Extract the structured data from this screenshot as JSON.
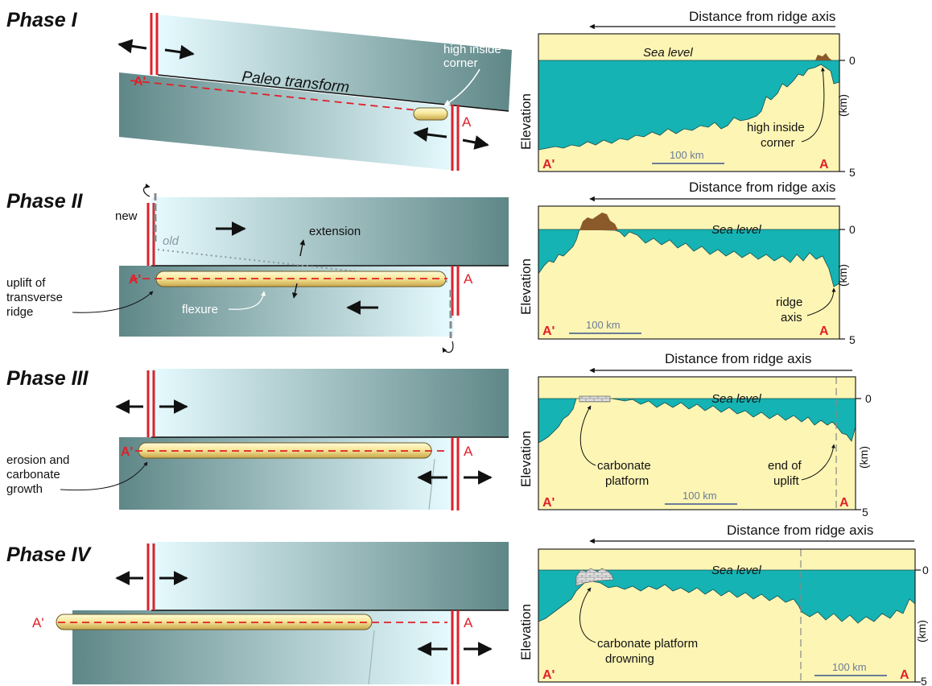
{
  "phases": [
    {
      "title": "Phase I",
      "map_labels": {
        "transform": "Paleo transform",
        "corner_line1": "high inside",
        "corner_line2": "corner"
      },
      "profile": {
        "title": "Distance from ridge axis",
        "sea_level": "Sea level",
        "elevation": "Elevation",
        "unit": "(km)",
        "tick_top": "0",
        "tick_bottom": "5",
        "scale": "100 km",
        "left_marker": "A'",
        "right_marker": "A",
        "annotation_line1": "high inside",
        "annotation_line2": "corner"
      }
    },
    {
      "title": "Phase II",
      "map_labels": {
        "new": "new",
        "old": "old",
        "extension": "extension",
        "uplift_line1": "uplift of",
        "uplift_line2": "transverse",
        "uplift_line3": "ridge",
        "flexure": "flexure"
      },
      "profile": {
        "title": "Distance from ridge axis",
        "sea_level": "Sea level",
        "elevation": "Elevation",
        "unit": "(km)",
        "tick_top": "0",
        "tick_bottom": "5",
        "scale": "100 km",
        "left_marker": "A'",
        "right_marker": "A",
        "annotation_line1": "ridge",
        "annotation_line2": "axis"
      }
    },
    {
      "title": "Phase III",
      "map_labels": {
        "erosion_line1": "erosion and",
        "erosion_line2": "carbonate",
        "erosion_line3": "growth"
      },
      "profile": {
        "title": "Distance from ridge axis",
        "sea_level": "Sea level",
        "elevation": "Elevation",
        "unit": "(km)",
        "tick_top": "0",
        "tick_bottom": "5",
        "scale": "100 km",
        "left_marker": "A'",
        "right_marker": "A",
        "annotation_line1": "carbonate",
        "annotation_line2": "platform",
        "annotation2_line1": "end of",
        "annotation2_line2": "uplift"
      }
    },
    {
      "title": "Phase IV",
      "map_labels": {},
      "profile": {
        "title": "Distance from ridge axis",
        "sea_level": "Sea level",
        "elevation": "Elevation",
        "unit": "(km)",
        "tick_top": "0",
        "tick_bottom": "5",
        "scale": "100 km",
        "left_marker": "A'",
        "right_marker": "A",
        "annotation_line1": "carbonate platform",
        "annotation_line2": "drowning"
      }
    }
  ],
  "markers": {
    "a_prime": "A'",
    "a": "A"
  },
  "colors": {
    "ocean": "#15b3b3",
    "seafloor": "#fdf5b4",
    "ridge": "#e0202a",
    "emergent": "#8b5a2b",
    "plate_light": "#e6fbff",
    "plate_dark": "#5f8787"
  }
}
